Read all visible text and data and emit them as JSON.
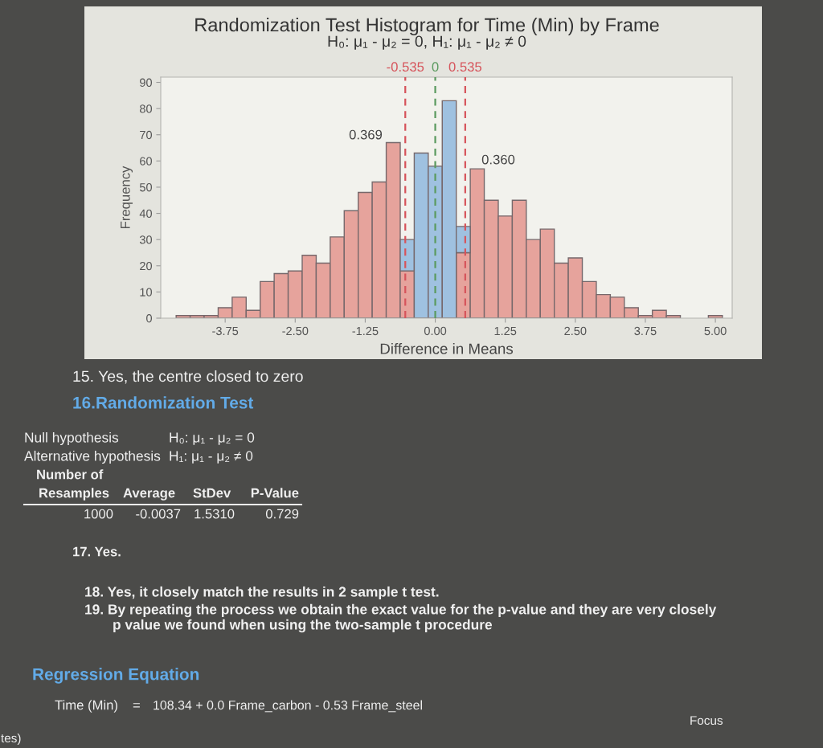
{
  "chart_data": {
    "type": "bar",
    "title": "Randomization Test Histogram for Time (Min) by Frame",
    "subtitle": "H₀: μ₁ - μ₂ = 0, H₁: μ₁ - μ₂ ≠ 0",
    "xlabel": "Difference in Means",
    "ylabel": "Frequency",
    "x": [
      -4.5,
      -4.25,
      -4,
      -3.75,
      -3.5,
      -3.25,
      -3,
      -2.75,
      -2.5,
      -2.25,
      -2,
      -1.75,
      -1.5,
      -1.25,
      -1,
      -0.75,
      -0.5,
      -0.25,
      0,
      0.25,
      0.5,
      0.75,
      1,
      1.25,
      1.5,
      1.75,
      2,
      2.25,
      2.5,
      2.75,
      3,
      3.25,
      3.5,
      3.75,
      4,
      4.25,
      4.5,
      4.75,
      5
    ],
    "series": [
      {
        "color": "#e6a39c",
        "values": [
          1,
          1,
          1,
          4,
          8,
          3,
          14,
          17,
          18,
          24,
          21,
          31,
          41,
          48,
          52,
          67,
          18,
          null,
          null,
          null,
          25,
          57,
          45,
          39,
          45,
          30,
          34,
          21,
          23,
          14,
          9,
          8,
          4,
          1,
          3,
          1,
          0,
          0,
          1
        ]
      },
      {
        "color": "#9fc1e0",
        "values": [
          null,
          null,
          null,
          null,
          null,
          null,
          null,
          null,
          null,
          null,
          null,
          null,
          null,
          null,
          null,
          null,
          12,
          63,
          58,
          83,
          10,
          null,
          null,
          null,
          null,
          null,
          null,
          null,
          null,
          null,
          null,
          null,
          null,
          null,
          null,
          null,
          null,
          null,
          null
        ]
      }
    ],
    "stacked": true,
    "xlim": [
      -4.9,
      5.3
    ],
    "ylim": [
      0,
      92
    ],
    "xticks": [
      -3.75,
      {
        "value": -2.5,
        "label": "-2.50"
      },
      -1.25,
      {
        "value": 0,
        "label": "0.00"
      },
      1.25,
      {
        "value": 2.5,
        "label": "2.50"
      },
      3.75,
      {
        "value": 5,
        "label": "5.00"
      }
    ],
    "yticks": [
      0,
      10,
      20,
      30,
      40,
      50,
      60,
      70,
      80,
      90
    ],
    "ref_lines": [
      {
        "axis": "x",
        "value": -0.535,
        "label": "-0.535",
        "color": "#d6545b",
        "line_style": "dashed"
      },
      {
        "axis": "x",
        "value": 0,
        "label": "0",
        "color": "#5b9a5f",
        "line_style": "dashed"
      },
      {
        "axis": "x",
        "value": 0.535,
        "label": "0.535",
        "color": "#d6545b",
        "line_style": "dashed"
      }
    ],
    "annotations": [
      "0.369",
      "0.360",
      "15. Yes, the centre closed to zero",
      "16.Randomization Test",
      "Null hypothesis",
      "H₀: μ₁ - μ₂ = 0",
      "Alternative hypothesis",
      "H₁: μ₁ - μ₂ ≠ 0",
      "Number of",
      "Resamples",
      "Average",
      "StDev",
      "P-Value",
      "1000",
      "-0.0037",
      "1.5310",
      "0.729",
      "17. Yes.",
      "18. Yes, it closely match the results in 2 sample t test.",
      "19. By repeating the process we obtain the exact value for the p-value and they are very closely",
      "p value we found when using the two-sample t procedure",
      "Regression Equation",
      "Time (Min)",
      "=",
      "108.34 + 0.0 Frame_carbon - 0.53 Frame_steel",
      "Focus",
      "tes)"
    ]
  }
}
